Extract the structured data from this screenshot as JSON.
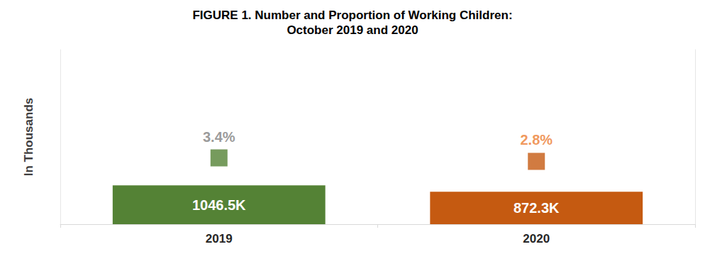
{
  "chart_data": {
    "type": "bar",
    "title": "FIGURE 1. Number and Proportion of Working Children:\nOctober 2019 and 2020",
    "y_label": "In Thousands",
    "categories": [
      "2019",
      "2020"
    ],
    "series": [
      {
        "type": "bar",
        "values": [
          1046.5,
          872.3
        ],
        "value_labels": [
          "1046.5K",
          "872.3K"
        ],
        "colors": [
          "#548235",
          "#c55a11"
        ]
      },
      {
        "type": "scatter",
        "marker": "square",
        "axis": "y2",
        "values": [
          3.4,
          2.8
        ],
        "value_labels": [
          "3.4%",
          "2.8%"
        ],
        "colors": [
          "#548235",
          "#c55a11"
        ]
      }
    ],
    "ylim": [
      0,
      4700
    ],
    "y2lim": [
      -8,
      22
    ],
    "data_labels": true,
    "tick_labels": "x",
    "grid": false
  }
}
